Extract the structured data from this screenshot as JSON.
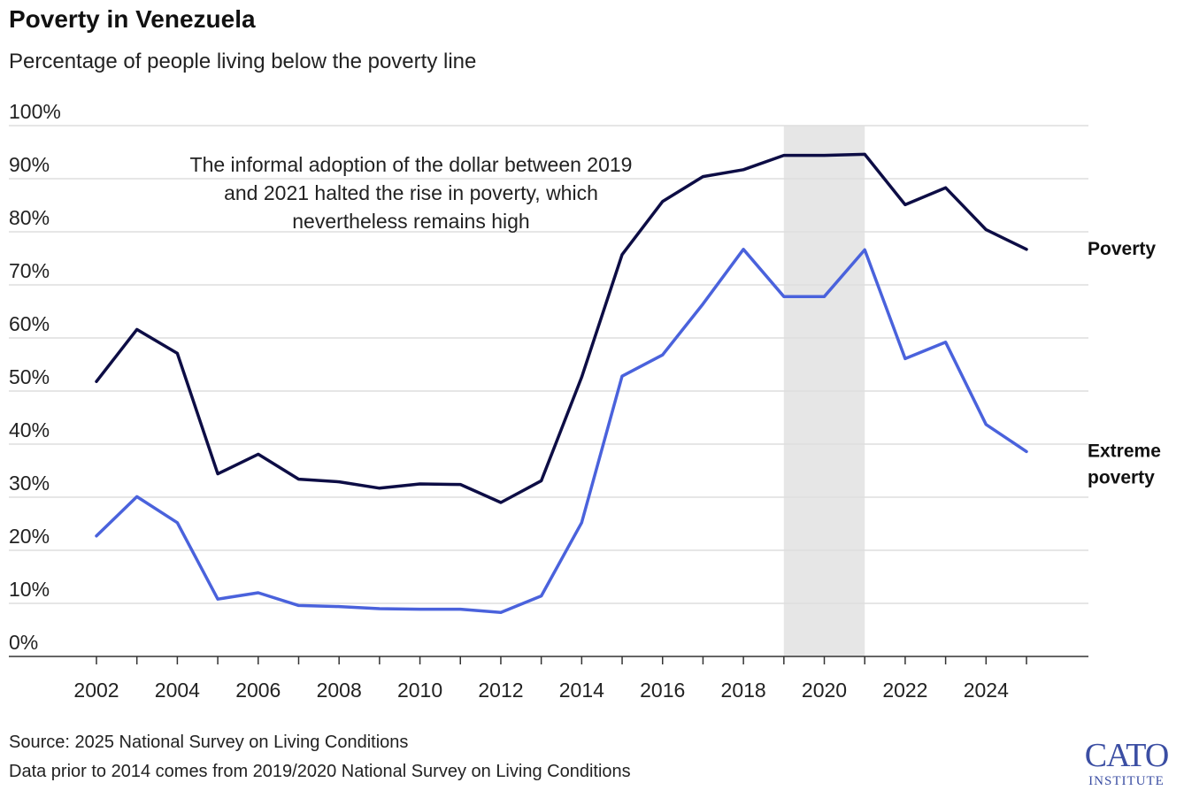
{
  "header": {
    "title": "Poverty in Venezuela",
    "subtitle": "Percentage of people living below the poverty line"
  },
  "annotation": "The informal adoption of the dollar between 2019 and 2021 halted the rise in poverty, which nevertheless remains high",
  "footer": {
    "source": "Source: 2025 National Survey on Living Conditions",
    "note": "Data prior to 2014 comes from 2019/2020 National Survey on Living Conditions"
  },
  "logo": {
    "line1": "CATO",
    "line2": "INSTITUTE"
  },
  "colors": {
    "poverty": "#0d0d45",
    "extreme": "#4a62dc",
    "shade": "#e6e6e6",
    "grid": "#dedede",
    "axis": "#333333",
    "logo": "#3b4ea3"
  },
  "chart_data": {
    "type": "line",
    "title": "Poverty in Venezuela",
    "subtitle": "Percentage of people living below the poverty line",
    "xlabel": "",
    "ylabel": "",
    "xlim": [
      2001.2,
      2026.3
    ],
    "ylim": [
      0,
      100
    ],
    "yticks": [
      0,
      10,
      20,
      30,
      40,
      50,
      60,
      70,
      80,
      90,
      100
    ],
    "ytick_labels": [
      "0%",
      "10%",
      "20%",
      "30%",
      "40%",
      "50%",
      "60%",
      "70%",
      "80%",
      "90%",
      "100%"
    ],
    "xticks": [
      2002,
      2003,
      2004,
      2005,
      2006,
      2007,
      2008,
      2009,
      2010,
      2011,
      2012,
      2013,
      2014,
      2015,
      2016,
      2017,
      2018,
      2019,
      2020,
      2021,
      2022,
      2023,
      2024,
      2025
    ],
    "xtick_labels": [
      "2002",
      "2004",
      "2006",
      "2008",
      "2010",
      "2012",
      "2014",
      "2016",
      "2018",
      "2020",
      "2022",
      "2024"
    ],
    "xtick_label_values": [
      2002,
      2004,
      2006,
      2008,
      2010,
      2012,
      2014,
      2016,
      2018,
      2020,
      2022,
      2024
    ],
    "grid": true,
    "legend": "inline labels at line ends",
    "shaded_region": [
      2019,
      2021
    ],
    "x": [
      2002,
      2003,
      2004,
      2005,
      2006,
      2007,
      2008,
      2009,
      2010,
      2011,
      2012,
      2013,
      2014,
      2015,
      2016,
      2017,
      2018,
      2019,
      2020,
      2021,
      2022,
      2023,
      2024,
      2025
    ],
    "series": [
      {
        "name": "Poverty",
        "values": [
          51.8,
          61.6,
          57.1,
          34.4,
          38.1,
          33.4,
          32.9,
          31.7,
          32.5,
          32.4,
          29.0,
          33.1,
          52.6,
          75.7,
          85.7,
          90.4,
          91.7,
          94.4,
          94.4,
          94.6,
          85.1,
          88.3,
          80.4,
          76.7
        ],
        "color": "#0d0d45"
      },
      {
        "name": "Extreme poverty",
        "name_lines": [
          "Extreme",
          "poverty"
        ],
        "values": [
          22.7,
          30.1,
          25.2,
          10.8,
          12.0,
          9.6,
          9.4,
          9.0,
          8.9,
          8.9,
          8.3,
          11.4,
          25.2,
          52.8,
          56.8,
          66.4,
          76.7,
          67.8,
          67.8,
          76.6,
          56.1,
          59.2,
          43.7,
          38.6
        ],
        "color": "#4a62dc"
      }
    ]
  }
}
